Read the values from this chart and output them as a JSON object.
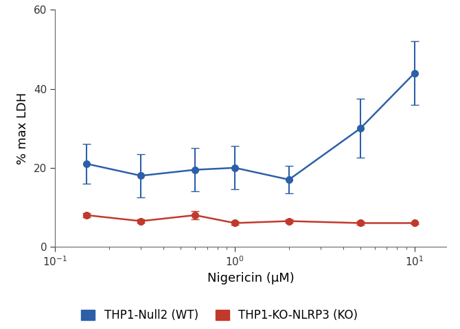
{
  "blue_x": [
    0.15,
    0.3,
    0.6,
    1.0,
    2.0,
    5.0,
    10.0
  ],
  "blue_y": [
    21.0,
    18.0,
    19.5,
    20.0,
    17.0,
    30.0,
    44.0
  ],
  "blue_yerr": [
    5.0,
    5.5,
    5.5,
    5.5,
    3.5,
    7.5,
    8.0
  ],
  "red_x": [
    0.15,
    0.3,
    0.6,
    1.0,
    2.0,
    5.0,
    10.0
  ],
  "red_y": [
    8.0,
    6.5,
    8.0,
    6.0,
    6.5,
    6.0,
    6.0
  ],
  "red_yerr": [
    0.5,
    0.5,
    1.0,
    0.5,
    0.5,
    0.5,
    0.3
  ],
  "blue_color": "#2c5fa8",
  "red_color": "#c0392b",
  "xlabel": "Nigericin (μM)",
  "ylabel": "% max LDH",
  "ylim": [
    0,
    60
  ],
  "yticks": [
    0,
    20,
    40,
    60
  ],
  "xlim": [
    0.1,
    15
  ],
  "legend_blue": "THP1-Null2 (WT)",
  "legend_red": "THP1-KO-NLRP3 (KO)",
  "marker_size": 7,
  "line_width": 1.8,
  "capsize": 4,
  "elinewidth": 1.5
}
